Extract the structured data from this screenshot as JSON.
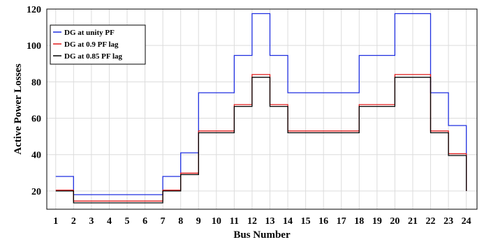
{
  "chart_data": {
    "type": "line",
    "step": "post",
    "title": "",
    "xlabel": "Bus Number",
    "ylabel": "Active Power Losses",
    "xlim": [
      0.5,
      24.6
    ],
    "ylim": [
      10,
      120
    ],
    "xticks": [
      1,
      2,
      3,
      4,
      5,
      6,
      7,
      8,
      9,
      10,
      11,
      12,
      13,
      14,
      15,
      16,
      17,
      18,
      19,
      20,
      21,
      22,
      23,
      24
    ],
    "yticks": [
      20,
      40,
      60,
      80,
      100,
      120
    ],
    "grid": true,
    "legend": {
      "placement": "top-left"
    },
    "x": [
      1,
      2,
      3,
      4,
      5,
      6,
      7,
      8,
      9,
      10,
      11,
      12,
      13,
      14,
      15,
      16,
      17,
      18,
      19,
      20,
      21,
      22,
      23,
      24
    ],
    "series": [
      {
        "name": "DG at unity PF",
        "color": "#1f2fe0",
        "values": [
          28,
          18,
          18,
          18,
          18,
          18,
          28,
          41,
          74,
          74,
          94.5,
          117.5,
          94.5,
          74,
          74,
          74,
          74,
          94.5,
          94.5,
          117.5,
          117.5,
          74,
          56,
          20
        ]
      },
      {
        "name": "DG at 0.9 PF lag",
        "color": "#e01a1a",
        "values": [
          20.5,
          14.5,
          14.5,
          14.5,
          14.5,
          14.5,
          20.5,
          29.8,
          53,
          53,
          67.5,
          84,
          67.5,
          53,
          53,
          53,
          53,
          67.5,
          67.5,
          84,
          84,
          53,
          40.5,
          20
        ]
      },
      {
        "name": "DG at 0.85 PF lag",
        "color": "#000000",
        "values": [
          20,
          13.5,
          13.5,
          13.5,
          13.5,
          13.5,
          20,
          29,
          52,
          52,
          66.5,
          82.5,
          66.5,
          52,
          52,
          52,
          52,
          66.5,
          66.5,
          82.5,
          82.5,
          52,
          39.5,
          20
        ]
      }
    ]
  }
}
